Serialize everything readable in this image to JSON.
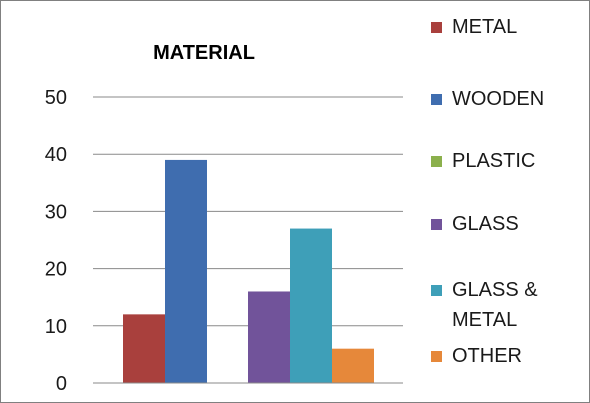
{
  "chart_data": {
    "type": "bar",
    "title": "MATERIAL",
    "xlabel": "",
    "ylabel": "",
    "ylim": [
      0,
      50
    ],
    "yticks": [
      0,
      10,
      20,
      30,
      40,
      50
    ],
    "grid": true,
    "legend_position": "right",
    "series": [
      {
        "name": "METAL",
        "color": "#A9403D",
        "x_group": 0,
        "value": 12
      },
      {
        "name": "WOODEN",
        "color": "#3F6DAF",
        "x_group": 0,
        "value": 39
      },
      {
        "name": "PLASTIC",
        "color": "#8BB04C",
        "x_group": null,
        "value": null
      },
      {
        "name": "GLASS",
        "color": "#71539A",
        "x_group": 1,
        "value": 16
      },
      {
        "name": "GLASS & METAL",
        "label_lines": [
          "GLASS &",
          "METAL"
        ],
        "color": "#3E9FB8",
        "x_group": 1,
        "value": 27
      },
      {
        "name": "OTHER",
        "color": "#E6883A",
        "x_group": 1,
        "value": 6
      }
    ]
  }
}
